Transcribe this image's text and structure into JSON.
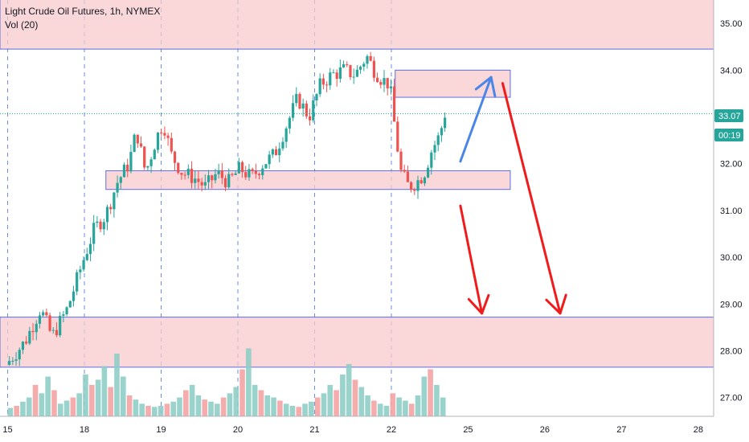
{
  "legend": {
    "title": "Light Crude Oil Futures, 1h, NYMEX",
    "volume": "Vol (20)"
  },
  "colors": {
    "up": "#26a69a",
    "down": "#ef5350",
    "zone_fill": "#f8c9cc",
    "zone_stroke": "#5b6ee1",
    "arrow_red": "#f21b1b",
    "arrow_blue": "#4a86e8",
    "price_line": "#26a69a",
    "vol_up": "#8fcdc6",
    "vol_down": "#f4a3a3"
  },
  "chart_data": {
    "type": "candlestick",
    "title": "Light Crude Oil Futures, 1h, NYMEX",
    "indicator": "Vol (20)",
    "ylim": [
      26.6,
      35.5
    ],
    "y_ticks": [
      27.0,
      28.0,
      29.0,
      30.0,
      31.0,
      32.0,
      33.0,
      34.0,
      35.0
    ],
    "x_ticks": [
      "15",
      "18",
      "19",
      "20",
      "21",
      "22",
      "25",
      "26",
      "27",
      "28"
    ],
    "x_tick_units": [
      0,
      1,
      2,
      3,
      4,
      5,
      6,
      7,
      8,
      9
    ],
    "x_range": [
      -0.1,
      9.2
    ],
    "last_price": "33.07",
    "last_price_value": 33.07,
    "countdown": "00:19",
    "price_path": [
      [
        0.0,
        27.7
      ],
      [
        0.25,
        28.2
      ],
      [
        0.45,
        28.9
      ],
      [
        0.6,
        28.3
      ],
      [
        0.8,
        28.9
      ],
      [
        1.0,
        29.9
      ],
      [
        1.15,
        30.6
      ],
      [
        1.3,
        30.9
      ],
      [
        1.45,
        31.6
      ],
      [
        1.6,
        32.0
      ],
      [
        1.7,
        32.7
      ],
      [
        1.82,
        31.8
      ],
      [
        1.95,
        32.5
      ],
      [
        2.05,
        32.9
      ],
      [
        2.15,
        32.2
      ],
      [
        2.3,
        31.8
      ],
      [
        2.45,
        31.7
      ],
      [
        2.6,
        31.5
      ],
      [
        2.75,
        31.8
      ],
      [
        2.9,
        31.6
      ],
      [
        3.05,
        31.9
      ],
      [
        3.2,
        31.7
      ],
      [
        3.35,
        32.0
      ],
      [
        3.5,
        32.2
      ],
      [
        3.65,
        32.8
      ],
      [
        3.8,
        33.4
      ],
      [
        3.95,
        33.0
      ],
      [
        4.1,
        33.7
      ],
      [
        4.25,
        33.9
      ],
      [
        4.4,
        34.0
      ],
      [
        4.55,
        33.9
      ],
      [
        4.7,
        34.3
      ],
      [
        4.8,
        34.0
      ],
      [
        4.9,
        33.8
      ],
      [
        5.0,
        33.7
      ],
      [
        5.08,
        32.6
      ],
      [
        5.15,
        31.8
      ],
      [
        5.25,
        31.5
      ],
      [
        5.35,
        31.6
      ],
      [
        5.45,
        31.8
      ],
      [
        5.55,
        32.3
      ],
      [
        5.65,
        32.6
      ],
      [
        5.72,
        33.07
      ]
    ],
    "volume_ylim": [
      0,
      100
    ],
    "volume_values": [
      8,
      10,
      14,
      18,
      30,
      22,
      38,
      25,
      12,
      15,
      18,
      22,
      40,
      30,
      35,
      48,
      28,
      60,
      38,
      20,
      16,
      12,
      10,
      9,
      10,
      12,
      14,
      18,
      25,
      30,
      20,
      16,
      14,
      12,
      18,
      22,
      28,
      45,
      65,
      30,
      25,
      20,
      18,
      15,
      12,
      10,
      9,
      12,
      14,
      18,
      22,
      30,
      25,
      40,
      50,
      35,
      28,
      20,
      15,
      12,
      10,
      22,
      18,
      15,
      12,
      20,
      38,
      45,
      30,
      18
    ],
    "zones": [
      {
        "name": "top-resistance",
        "x0": -0.1,
        "x1": 9.2,
        "y0": 34.45,
        "y1": 35.6
      },
      {
        "name": "upper-box",
        "x0": 5.05,
        "x1": 6.55,
        "y0": 33.42,
        "y1": 34.0
      },
      {
        "name": "middle-box",
        "x0": 1.28,
        "x1": 6.55,
        "y0": 31.45,
        "y1": 31.85
      },
      {
        "name": "bottom-zone",
        "x0": -0.1,
        "x1": 9.2,
        "y0": 27.65,
        "y1": 28.72
      }
    ],
    "arrows": [
      {
        "color": "blue",
        "from": [
          5.9,
          32.05
        ],
        "to": [
          6.3,
          33.85
        ]
      },
      {
        "color": "red",
        "from": [
          5.9,
          31.1
        ],
        "to": [
          6.18,
          28.8
        ]
      },
      {
        "color": "red",
        "from": [
          6.45,
          33.72
        ],
        "to": [
          7.2,
          28.8
        ]
      }
    ]
  }
}
